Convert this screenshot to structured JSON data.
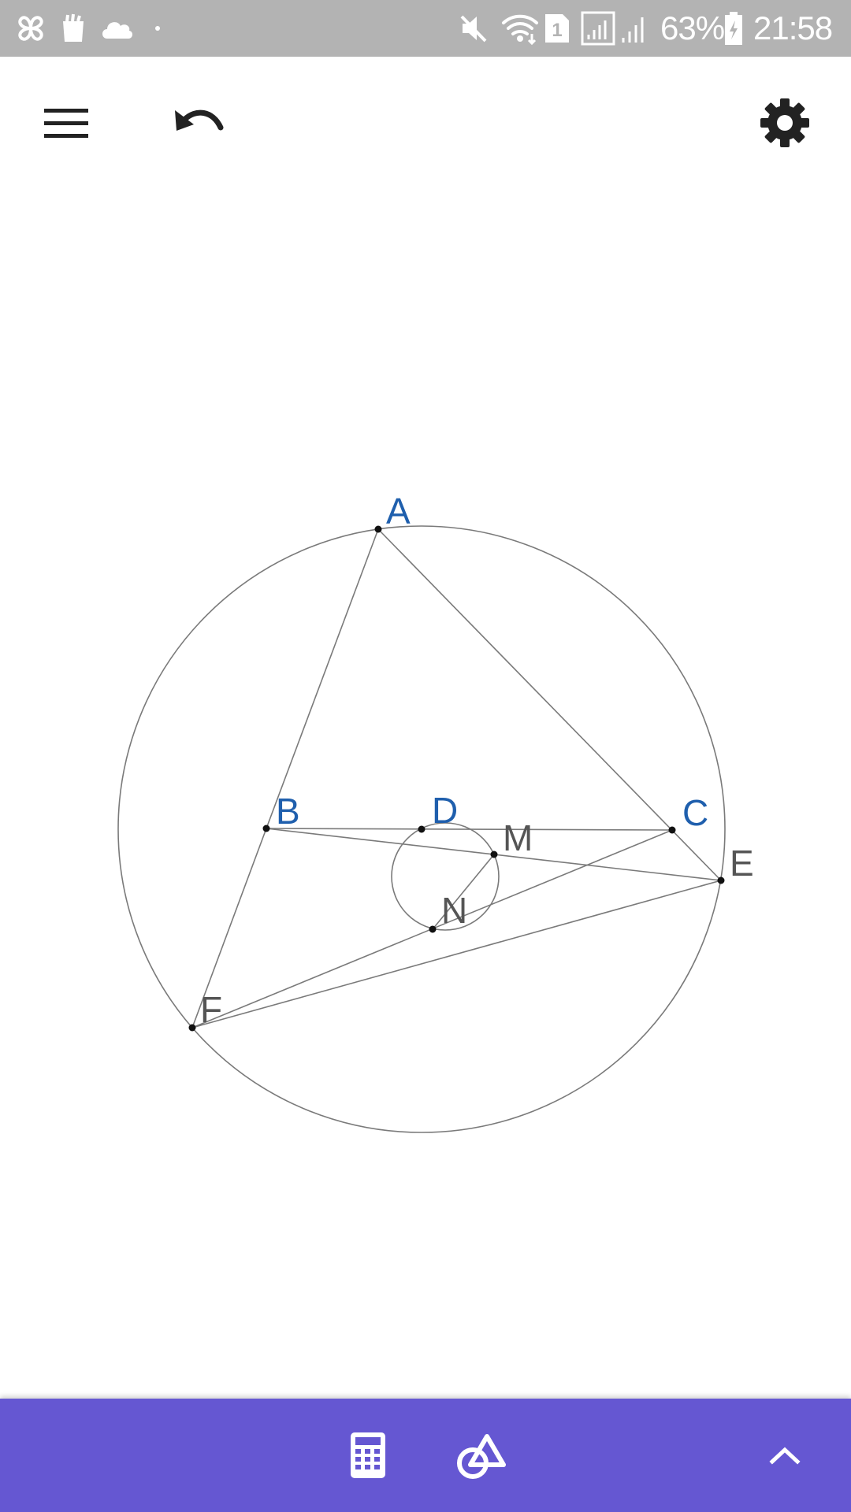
{
  "status_bar": {
    "battery_percent": "63%",
    "time": "21:58",
    "sim_number": "1",
    "icons": [
      "pinwheel-icon",
      "bag-icon",
      "cloud-icon",
      "dot-icon",
      "mute-icon",
      "wifi-icon",
      "sim-icon",
      "signal-icon",
      "signal-icon-2",
      "battery-charging-icon"
    ]
  },
  "toolbar": {
    "menu_icon": "menu-icon",
    "undo_icon": "undo-icon",
    "settings_icon": "gear-icon"
  },
  "construction": {
    "points": {
      "A": "A",
      "B": "B",
      "C": "C",
      "D": "D",
      "E": "E",
      "F": "F",
      "M": "M",
      "N": "N"
    },
    "colors": {
      "free_point_label": "#1f5fad",
      "dependent_point_label": "#555555",
      "line": "#7a7a7a",
      "point": "#111111"
    }
  },
  "bottom_bar": {
    "calculator_icon": "calculator-icon",
    "geometry_tools_icon": "shapes-icon",
    "expand_icon": "chevron-up-icon",
    "color": "#6557d2"
  }
}
